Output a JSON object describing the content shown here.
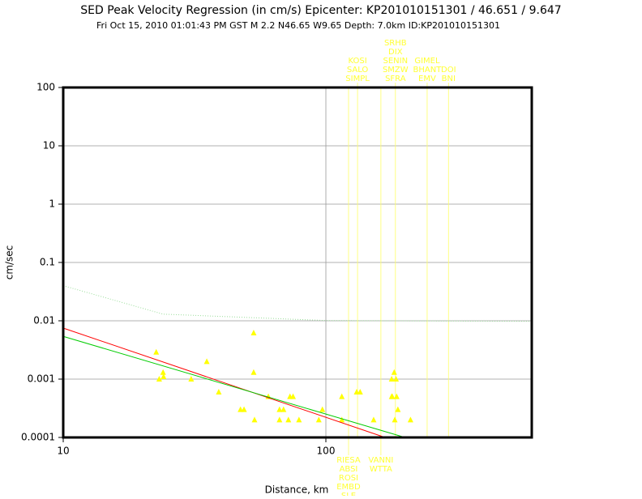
{
  "chart_data": {
    "type": "scatter",
    "title": "SED Peak Velocity Regression (in cm/s) Epicenter: KP201010151301 / 46.651 / 9.647",
    "subtitle": "Fri Oct 15, 2010 01:01:43 PM GST   M 2.2   N46.65 W9.65   Depth: 7.0km   ID:KP201010151301",
    "x_label": "Distance, km",
    "y_label": "cm/sec",
    "log_x": true,
    "log_y": true,
    "xlim": [
      10,
      608
    ],
    "ylim": [
      0.0001,
      100
    ],
    "xticks": [
      10,
      100
    ],
    "yticks": [
      0.0001,
      0.001,
      0.01,
      0.1,
      1,
      10,
      100
    ],
    "grid": true,
    "series": [
      {
        "type": "scatter",
        "color": "#ffff00",
        "x": [
          22.6,
          23.2,
          24,
          24.1,
          30.7,
          35.2,
          39.1,
          47.3,
          48.8,
          53.1,
          53.1,
          53.5,
          60.4,
          66.6,
          66.6,
          69,
          72,
          73,
          75,
          79,
          94,
          97,
          115,
          115,
          131,
          135,
          152,
          178,
          178,
          182,
          179,
          186,
          188,
          183,
          185,
          210
        ],
        "values": [
          0.0029,
          0.001,
          0.0013,
          0.0011,
          0.001,
          0.002,
          0.0006,
          0.0003,
          0.0003,
          0.0062,
          0.0013,
          0.0002,
          0.0005,
          0.0003,
          0.0002,
          0.0003,
          0.0002,
          0.0005,
          0.0005,
          0.0002,
          0.0002,
          0.0003,
          0.0005,
          0.0002,
          0.0006,
          0.0006,
          0.0002,
          0.0005,
          0.001,
          0.0013,
          0.0005,
          0.0005,
          0.0003,
          0.0002,
          0.001,
          0.0002
        ]
      },
      {
        "type": "line",
        "color": "#ff0000",
        "x": [
          10,
          168
        ],
        "values": [
          0.0075,
          0.0001
        ]
      },
      {
        "type": "line",
        "color": "#00cc00",
        "x": [
          10,
          200
        ],
        "values": [
          0.0054,
          0.0001
        ]
      },
      {
        "type": "line",
        "color": "#99dd99",
        "dashed": true,
        "x": [
          10,
          24,
          100,
          608
        ],
        "values": [
          0.04,
          0.013,
          0.0101,
          0.0098
        ]
      }
    ],
    "stations_top": [
      {
        "distance": 132,
        "names": [
          "KOSI",
          "SALO",
          "SIMPL"
        ]
      },
      {
        "distance": 184,
        "names": [
          "SRHB",
          "DIX",
          "SENIN",
          "SMZW",
          "SFRA"
        ]
      },
      {
        "distance": 243,
        "names": [
          "GIMEL",
          "BHANT",
          "EMV"
        ]
      },
      {
        "distance": 293,
        "names": [
          "DOI",
          "BNI"
        ]
      }
    ],
    "stations_bottom": [
      {
        "distance": 122,
        "names": [
          "RIESA",
          "ABSI",
          "ROSI",
          "EMBD",
          "SLE"
        ]
      },
      {
        "distance": 162,
        "names": [
          "VANNI",
          "WTTA"
        ]
      }
    ]
  }
}
